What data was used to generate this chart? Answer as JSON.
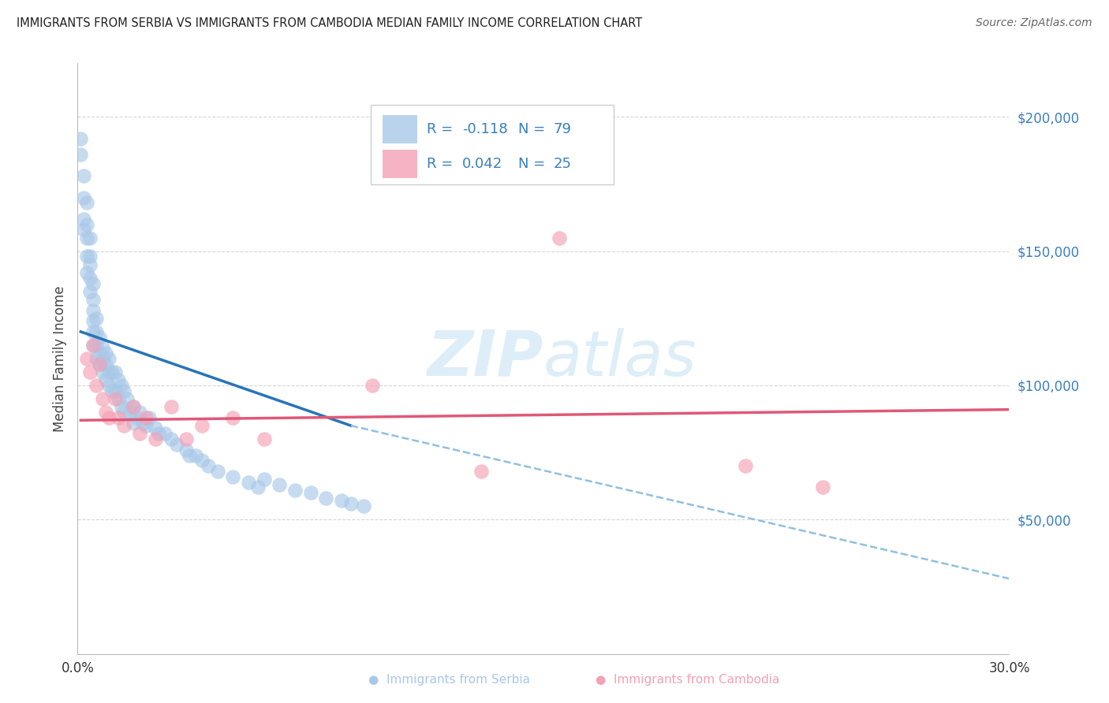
{
  "title": "IMMIGRANTS FROM SERBIA VS IMMIGRANTS FROM CAMBODIA MEDIAN FAMILY INCOME CORRELATION CHART",
  "source": "Source: ZipAtlas.com",
  "ylabel": "Median Family Income",
  "xlim": [
    0.0,
    0.3
  ],
  "ylim": [
    0,
    220000
  ],
  "serbia_R": -0.118,
  "serbia_N": 79,
  "cambodia_R": 0.042,
  "cambodia_N": 25,
  "serbia_color": "#a8c8e8",
  "cambodia_color": "#f4a0b5",
  "serbia_line_color": "#2874b8",
  "cambodia_line_color": "#e05878",
  "dashed_line_color": "#90c0e0",
  "background_color": "#ffffff",
  "grid_color": "#cccccc",
  "watermark_color": "#ddeef8",
  "serbia_line_x0": 0.001,
  "serbia_line_y0": 120000,
  "serbia_line_x1": 0.088,
  "serbia_line_y1": 85000,
  "dashed_line_x0": 0.088,
  "dashed_line_y0": 85000,
  "dashed_line_x1": 0.3,
  "dashed_line_y1": 28000,
  "cambodia_line_x0": 0.001,
  "cambodia_line_y0": 87000,
  "cambodia_line_x1": 0.3,
  "cambodia_line_y1": 91000,
  "serbia_scatter_x": [
    0.001,
    0.001,
    0.002,
    0.002,
    0.002,
    0.002,
    0.003,
    0.003,
    0.003,
    0.003,
    0.003,
    0.004,
    0.004,
    0.004,
    0.004,
    0.004,
    0.005,
    0.005,
    0.005,
    0.005,
    0.005,
    0.005,
    0.006,
    0.006,
    0.006,
    0.006,
    0.007,
    0.007,
    0.007,
    0.008,
    0.008,
    0.008,
    0.009,
    0.009,
    0.009,
    0.01,
    0.01,
    0.01,
    0.011,
    0.011,
    0.012,
    0.012,
    0.013,
    0.013,
    0.014,
    0.014,
    0.015,
    0.015,
    0.016,
    0.017,
    0.018,
    0.018,
    0.019,
    0.02,
    0.021,
    0.022,
    0.023,
    0.025,
    0.026,
    0.028,
    0.03,
    0.032,
    0.035,
    0.036,
    0.038,
    0.04,
    0.042,
    0.045,
    0.05,
    0.055,
    0.058,
    0.06,
    0.065,
    0.07,
    0.075,
    0.08,
    0.085,
    0.088,
    0.092
  ],
  "serbia_scatter_y": [
    192000,
    186000,
    178000,
    170000,
    162000,
    158000,
    168000,
    160000,
    155000,
    148000,
    142000,
    155000,
    148000,
    145000,
    140000,
    135000,
    138000,
    132000,
    128000,
    124000,
    120000,
    115000,
    125000,
    120000,
    115000,
    110000,
    118000,
    112000,
    108000,
    114000,
    110000,
    105000,
    112000,
    108000,
    102000,
    110000,
    105000,
    100000,
    105000,
    98000,
    105000,
    98000,
    102000,
    95000,
    100000,
    92000,
    98000,
    90000,
    95000,
    90000,
    92000,
    86000,
    88000,
    90000,
    86000,
    85000,
    88000,
    84000,
    82000,
    82000,
    80000,
    78000,
    76000,
    74000,
    74000,
    72000,
    70000,
    68000,
    66000,
    64000,
    62000,
    65000,
    63000,
    61000,
    60000,
    58000,
    57000,
    56000,
    55000
  ],
  "cambodia_scatter_x": [
    0.003,
    0.004,
    0.005,
    0.006,
    0.007,
    0.008,
    0.009,
    0.01,
    0.012,
    0.013,
    0.015,
    0.018,
    0.02,
    0.022,
    0.025,
    0.03,
    0.035,
    0.04,
    0.05,
    0.06,
    0.095,
    0.13,
    0.155,
    0.215,
    0.24
  ],
  "cambodia_scatter_y": [
    110000,
    105000,
    115000,
    100000,
    108000,
    95000,
    90000,
    88000,
    95000,
    88000,
    85000,
    92000,
    82000,
    88000,
    80000,
    92000,
    80000,
    85000,
    88000,
    80000,
    100000,
    68000,
    155000,
    70000,
    62000
  ]
}
